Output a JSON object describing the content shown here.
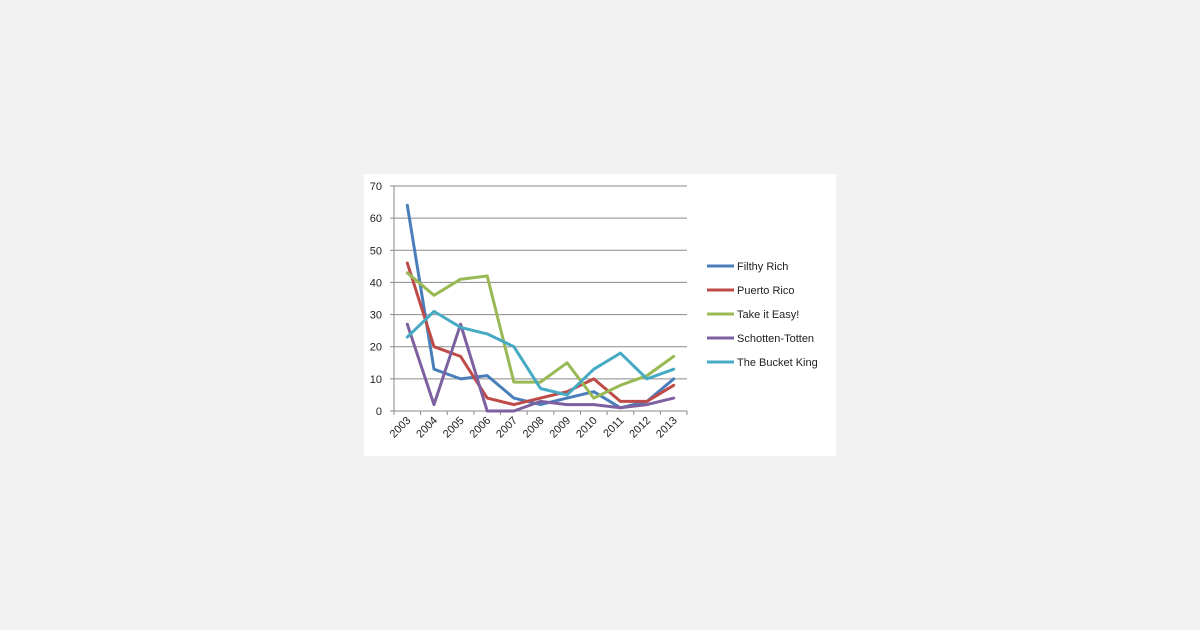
{
  "colors": {
    "background": "#f1f1f1",
    "card": "#ffffff",
    "grid": "#8a8a8a",
    "axis": "#8a8a8a",
    "text": "#222222"
  },
  "chart_data": {
    "type": "line",
    "title": "",
    "xlabel": "",
    "ylabel": "",
    "grid": true,
    "legend_position": "right",
    "x": [
      "2003",
      "2004",
      "2005",
      "2006",
      "2007",
      "2008",
      "2009",
      "2010",
      "2011",
      "2012",
      "2013"
    ],
    "y_ticks": [
      0,
      10,
      20,
      30,
      40,
      50,
      60,
      70
    ],
    "ylim": [
      0,
      70
    ],
    "series": [
      {
        "name": "Filthy Rich",
        "color": "#4a7ebb",
        "values": [
          64,
          13,
          10,
          11,
          4,
          2,
          4,
          6,
          1,
          3,
          10
        ]
      },
      {
        "name": "Puerto Rico",
        "color": "#be4b48",
        "values": [
          46,
          20,
          17,
          4,
          2,
          4,
          6,
          10,
          3,
          3,
          8
        ]
      },
      {
        "name": "Take it Easy!",
        "color": "#98b954",
        "values": [
          43,
          36,
          41,
          42,
          9,
          9,
          15,
          4,
          8,
          11,
          17
        ]
      },
      {
        "name": "Schotten-Totten",
        "color": "#7d60a0",
        "values": [
          27,
          2,
          27,
          0,
          0,
          3,
          2,
          2,
          1,
          2,
          4
        ]
      },
      {
        "name": "The Bucket King",
        "color": "#46aac5",
        "values": [
          23,
          31,
          26,
          24,
          20,
          7,
          5,
          13,
          18,
          10,
          13
        ]
      }
    ]
  }
}
